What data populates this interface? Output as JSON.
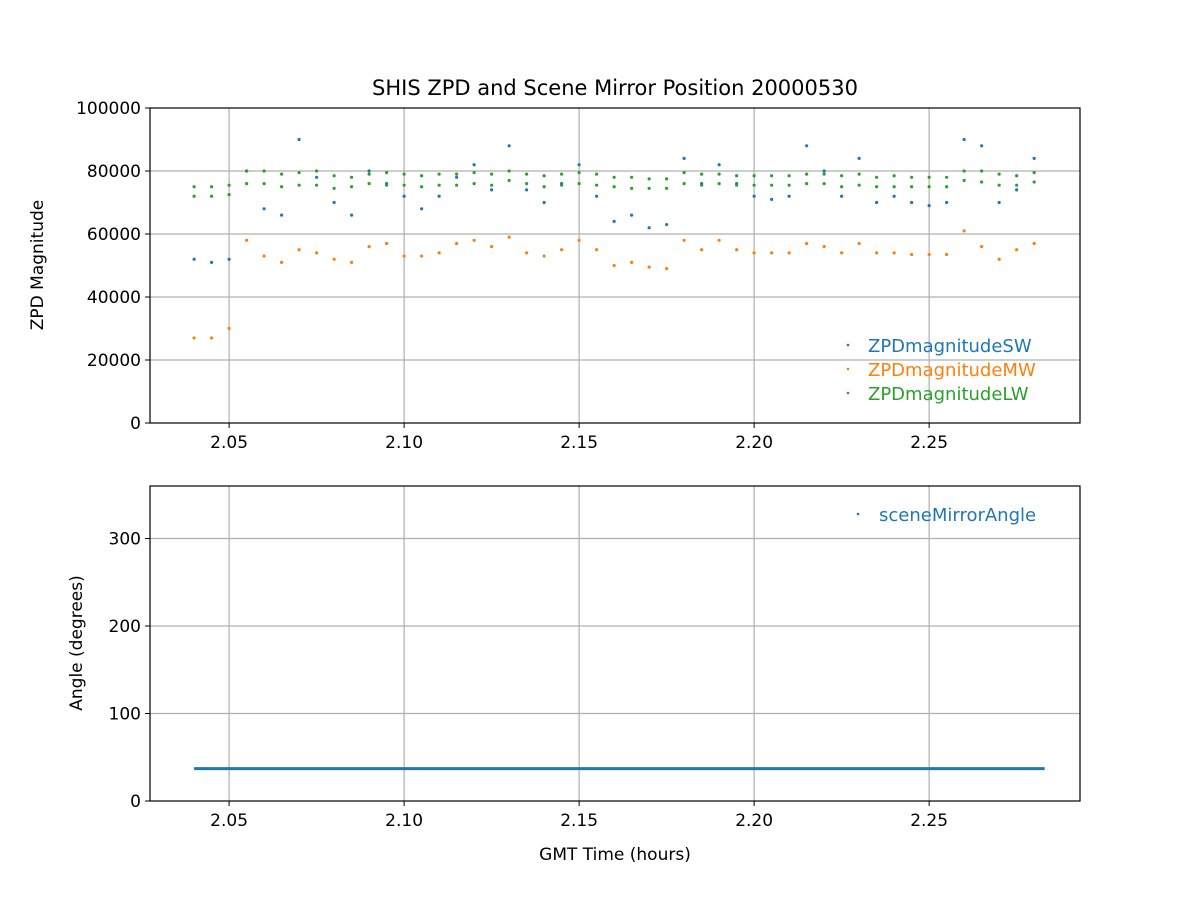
{
  "chart_data": [
    {
      "type": "scatter",
      "title": "SHIS ZPD and Scene Mirror Position 20000530",
      "xlabel": "",
      "ylabel": "ZPD Magnitude",
      "xlim": [
        2.0274,
        2.2931
      ],
      "ylim": [
        0,
        100000
      ],
      "xticks": [
        "2.05",
        "2.10",
        "2.15",
        "2.20",
        "2.25"
      ],
      "xtick_values": [
        2.05,
        2.1,
        2.15,
        2.2,
        2.25
      ],
      "yticks": [
        "0",
        "20000",
        "40000",
        "60000",
        "80000",
        "100000"
      ],
      "ytick_values": [
        0,
        20000,
        40000,
        60000,
        80000,
        100000
      ],
      "grid": true,
      "legend_position": "lower-right",
      "x": [
        2.04,
        2.045,
        2.05,
        2.055,
        2.06,
        2.065,
        2.07,
        2.075,
        2.08,
        2.085,
        2.09,
        2.095,
        2.1,
        2.105,
        2.11,
        2.115,
        2.12,
        2.125,
        2.13,
        2.135,
        2.14,
        2.145,
        2.15,
        2.155,
        2.16,
        2.165,
        2.17,
        2.175,
        2.18,
        2.185,
        2.19,
        2.195,
        2.2,
        2.205,
        2.21,
        2.215,
        2.22,
        2.225,
        2.23,
        2.235,
        2.24,
        2.245,
        2.25,
        2.255,
        2.26,
        2.265,
        2.27,
        2.275,
        2.28
      ],
      "series": [
        {
          "name": "ZPDmagnitudeSW",
          "color": "#1f77b4",
          "values": [
            52000,
            51000,
            52000,
            80000,
            68000,
            66000,
            90000,
            78000,
            70000,
            66000,
            80000,
            76000,
            72000,
            68000,
            72000,
            78000,
            82000,
            74000,
            88000,
            74000,
            70000,
            76000,
            82000,
            72000,
            64000,
            66000,
            62000,
            63000,
            84000,
            76000,
            82000,
            76000,
            72000,
            71000,
            72000,
            88000,
            80000,
            72000,
            84000,
            70000,
            72000,
            70000,
            69000,
            70000,
            90000,
            88000,
            70000,
            74000,
            84000
          ]
        },
        {
          "name": "ZPDmagnitudeMW",
          "color": "#ff7f0e",
          "values": [
            27000,
            27000,
            30000,
            58000,
            53000,
            51000,
            55000,
            54000,
            52000,
            51000,
            56000,
            57000,
            53000,
            53000,
            54000,
            57000,
            58000,
            56000,
            59000,
            54000,
            53000,
            55000,
            58000,
            55000,
            50000,
            51000,
            49500,
            49000,
            58000,
            55000,
            58000,
            55000,
            54000,
            54000,
            54000,
            57000,
            56000,
            54000,
            57000,
            54000,
            54000,
            53500,
            53500,
            53500,
            61000,
            56000,
            52000,
            55000,
            57000
          ]
        },
        {
          "name": "ZPDmagnitudeLW",
          "color": "#2ca02c",
          "values": [
            75000,
            75000,
            75500,
            80000,
            80000,
            79000,
            79500,
            80000,
            78500,
            78000,
            79000,
            79500,
            79000,
            78500,
            79000,
            79000,
            79500,
            79000,
            80000,
            79000,
            78500,
            79000,
            79500,
            79000,
            78000,
            78000,
            77500,
            77500,
            79500,
            79000,
            79000,
            78500,
            78500,
            78500,
            78500,
            79000,
            79000,
            78500,
            79000,
            78000,
            78500,
            78000,
            78000,
            78000,
            80000,
            80000,
            79000,
            78500,
            79500
          ],
          "values_band2": [
            72000,
            72000,
            72500,
            76000,
            76000,
            75000,
            75500,
            75500,
            74500,
            75000,
            76000,
            75500,
            75500,
            75000,
            75500,
            75500,
            76000,
            75500,
            77000,
            76000,
            75000,
            75500,
            76000,
            75500,
            75000,
            74500,
            74500,
            74500,
            76000,
            75500,
            76000,
            75500,
            75500,
            75500,
            75500,
            76000,
            76000,
            75000,
            75500,
            75000,
            75000,
            75000,
            75000,
            75000,
            77000,
            76500,
            75500,
            75500,
            76500
          ]
        }
      ]
    },
    {
      "type": "scatter",
      "title": "",
      "xlabel": "GMT Time (hours)",
      "ylabel": "Angle (degrees)",
      "xlim": [
        2.0274,
        2.2931
      ],
      "ylim": [
        0,
        360
      ],
      "xticks": [
        "2.05",
        "2.10",
        "2.15",
        "2.20",
        "2.25"
      ],
      "xtick_values": [
        2.05,
        2.1,
        2.15,
        2.2,
        2.25
      ],
      "yticks": [
        "0",
        "100",
        "200",
        "300"
      ],
      "ytick_values": [
        0,
        100,
        200,
        300
      ],
      "grid": true,
      "legend_position": "top-right",
      "series": [
        {
          "name": "sceneMirrorAngle",
          "color": "#1f77b4",
          "x_range": [
            2.04,
            2.283
          ],
          "value": 37
        }
      ]
    }
  ]
}
